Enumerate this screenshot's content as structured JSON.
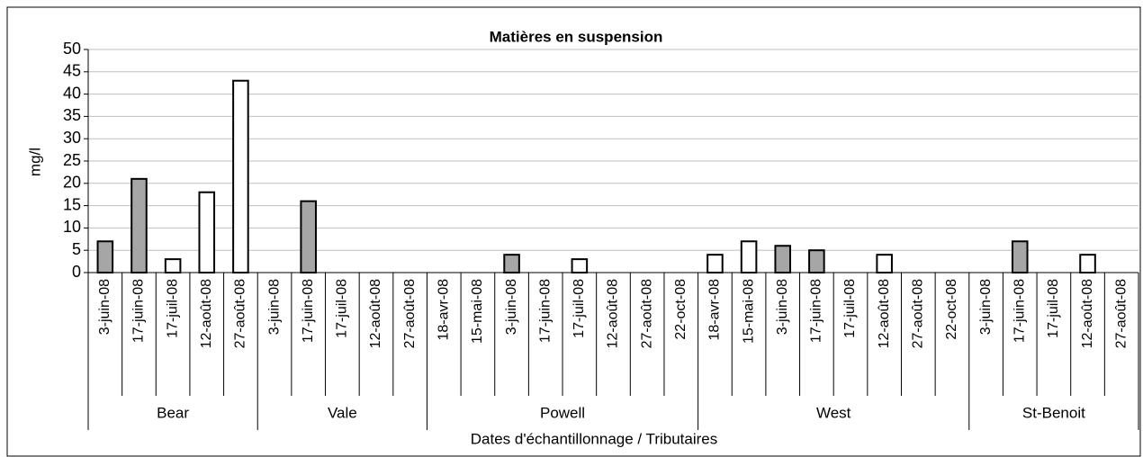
{
  "chart_data": {
    "type": "bar",
    "title": "Matières en suspension",
    "y_label": "mg/l",
    "x_label": "Dates d'échantillonnage / Tributaires",
    "ylim": [
      0,
      50
    ],
    "yticks": [
      0,
      5,
      10,
      15,
      20,
      25,
      30,
      35,
      40,
      45,
      50
    ],
    "grid": true,
    "groups": [
      {
        "name": "Bear",
        "categories": [
          "3-juin-08",
          "17-juin-08",
          "17-juil-08",
          "12-août-08",
          "27-août-08"
        ],
        "values": [
          7,
          21,
          3,
          18,
          43
        ],
        "colors": [
          "#a6a6a6",
          "#a6a6a6",
          "#ffffff",
          "#ffffff",
          "#ffffff"
        ]
      },
      {
        "name": "Vale",
        "categories": [
          "3-juin-08",
          "17-juin-08",
          "17-juil-08",
          "12-août-08",
          "27-août-08"
        ],
        "values": [
          null,
          16,
          null,
          null,
          null
        ],
        "colors": [
          null,
          "#a6a6a6",
          null,
          null,
          null
        ]
      },
      {
        "name": "Powell",
        "categories": [
          "18-avr-08",
          "15-mai-08",
          "3-juin-08",
          "17-juin-08",
          "17-juil-08",
          "12-août-08",
          "27-août-08",
          "22-oct-08"
        ],
        "values": [
          null,
          null,
          4,
          null,
          3,
          null,
          null,
          null
        ],
        "colors": [
          null,
          null,
          "#a6a6a6",
          null,
          "#ffffff",
          null,
          null,
          null
        ]
      },
      {
        "name": "West",
        "categories": [
          "18-avr-08",
          "15-mai-08",
          "3-juin-08",
          "17-juin-08",
          "17-juil-08",
          "12-août-08",
          "27-août-08",
          "22-oct-08"
        ],
        "values": [
          4,
          7,
          6,
          5,
          null,
          4,
          null,
          null
        ],
        "colors": [
          "#ffffff",
          "#ffffff",
          "#a6a6a6",
          "#a6a6a6",
          null,
          "#ffffff",
          null,
          null
        ]
      },
      {
        "name": "St-Benoit",
        "categories": [
          "3-juin-08",
          "17-juin-08",
          "17-juil-08",
          "12-août-08",
          "27-août-08"
        ],
        "values": [
          null,
          7,
          null,
          4,
          null
        ],
        "colors": [
          null,
          "#a6a6a6",
          null,
          "#ffffff",
          null
        ]
      }
    ]
  }
}
